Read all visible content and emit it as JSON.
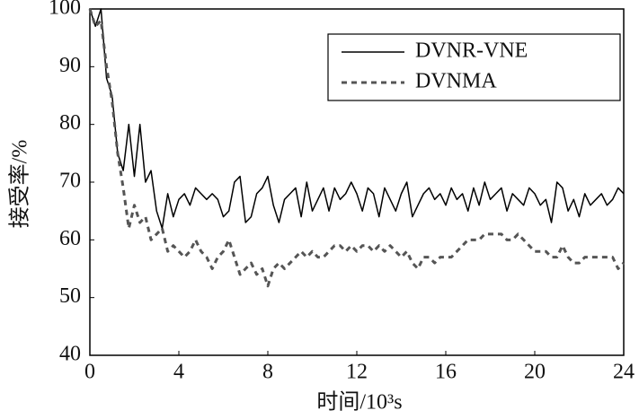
{
  "chart_data": {
    "type": "line",
    "xlabel": "时间/10³s",
    "ylabel": "接受率/%",
    "x": [
      0,
      0.25,
      0.5,
      0.75,
      1,
      1.25,
      1.5,
      1.75,
      2,
      2.25,
      2.5,
      2.75,
      3,
      3.25,
      3.5,
      3.75,
      4,
      4.25,
      4.5,
      4.75,
      5,
      5.25,
      5.5,
      5.75,
      6,
      6.25,
      6.5,
      6.75,
      7,
      7.25,
      7.5,
      7.75,
      8,
      8.25,
      8.5,
      8.75,
      9,
      9.25,
      9.5,
      9.75,
      10,
      10.25,
      10.5,
      10.75,
      11,
      11.25,
      11.5,
      11.75,
      12,
      12.25,
      12.5,
      12.75,
      13,
      13.25,
      13.5,
      13.75,
      14,
      14.25,
      14.5,
      14.75,
      15,
      15.25,
      15.5,
      15.75,
      16,
      16.25,
      16.5,
      16.75,
      17,
      17.25,
      17.5,
      17.75,
      18,
      18.25,
      18.5,
      18.75,
      19,
      19.25,
      19.5,
      19.75,
      20,
      20.25,
      20.5,
      20.75,
      21,
      21.25,
      21.5,
      21.75,
      22,
      22.25,
      22.5,
      22.75,
      23,
      23.25,
      23.5,
      23.75,
      24
    ],
    "series": [
      {
        "name": "DVNR-VNE",
        "color": "#000000",
        "dashed": false,
        "values": [
          100,
          97,
          100,
          88,
          85,
          75,
          72,
          80,
          71,
          80,
          70,
          72,
          65,
          62,
          68,
          64,
          67,
          68,
          66,
          69,
          68,
          67,
          68,
          67,
          64,
          65,
          70,
          71,
          63,
          64,
          68,
          69,
          71,
          66,
          63,
          67,
          68,
          69,
          64,
          70,
          65,
          67,
          69,
          65,
          69,
          67,
          68,
          70,
          68,
          65,
          69,
          68,
          64,
          69,
          67,
          65,
          68,
          70,
          64,
          66,
          68,
          69,
          67,
          68,
          66,
          69,
          67,
          68,
          65,
          69,
          66,
          70,
          67,
          68,
          69,
          65,
          68,
          67,
          66,
          69,
          68,
          66,
          67,
          63,
          70,
          69,
          65,
          67,
          64,
          68,
          66,
          67,
          68,
          66,
          67,
          69,
          68
        ]
      },
      {
        "name": "DVNMA",
        "color": "#555555",
        "dashed": true,
        "values": [
          100,
          97,
          98,
          90,
          84,
          75,
          69,
          62,
          66,
          63,
          64,
          60,
          61,
          62,
          58,
          59,
          58,
          57,
          58,
          60,
          58,
          57,
          55,
          57,
          58,
          60,
          57,
          54,
          55,
          56,
          54,
          55,
          52,
          55,
          56,
          55,
          56,
          57,
          58,
          57,
          58,
          57,
          57,
          58,
          59,
          59,
          58,
          59,
          58,
          59,
          59,
          58,
          59,
          58,
          59,
          58,
          57,
          58,
          56,
          55,
          57,
          57,
          56,
          57,
          57,
          57,
          58,
          59,
          60,
          60,
          60,
          61,
          61,
          61,
          61,
          60,
          60,
          61,
          60,
          59,
          58,
          58,
          58,
          57,
          57,
          59,
          57,
          56,
          56,
          57,
          57,
          57,
          57,
          57,
          57,
          55,
          56
        ]
      }
    ],
    "xlim": [
      0,
      24
    ],
    "xticks": [
      0,
      4,
      8,
      12,
      16,
      20,
      24
    ],
    "ylim": [
      40,
      100
    ],
    "yticks": [
      40,
      50,
      60,
      70,
      80,
      90,
      100
    ],
    "grid": false,
    "legend": "top-right"
  }
}
